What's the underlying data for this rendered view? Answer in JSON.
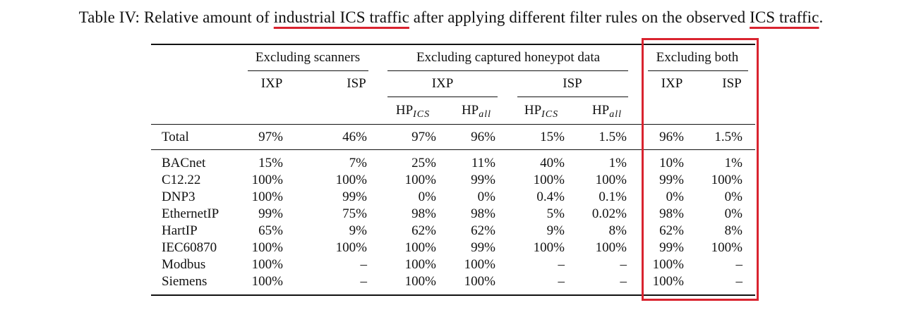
{
  "caption": {
    "prefix": "Table IV: Relative amount of ",
    "u1": "industrial ICS traffic",
    "middle": " after applying different filter rules on the observed ",
    "u2": "ICS traffic",
    "suffix": "."
  },
  "colors": {
    "highlight": "#d9232f",
    "text": "#111111"
  },
  "header": {
    "group1": "Excluding scanners",
    "group2": "Excluding captured honeypot data",
    "group3": "Excluding both",
    "ixp": "IXP",
    "isp": "ISP",
    "hp": "HP",
    "ics": "ICS",
    "all": "all"
  },
  "total": {
    "label": "Total",
    "values": [
      "97%",
      "46%",
      "97%",
      "96%",
      "15%",
      "1.5%",
      "96%",
      "1.5%"
    ]
  },
  "rows": [
    {
      "label": "BACnet",
      "values": [
        "15%",
        "7%",
        "25%",
        "11%",
        "40%",
        "1%",
        "10%",
        "1%"
      ]
    },
    {
      "label": "C12.22",
      "values": [
        "100%",
        "100%",
        "100%",
        "99%",
        "100%",
        "100%",
        "99%",
        "100%"
      ]
    },
    {
      "label": "DNP3",
      "values": [
        "100%",
        "99%",
        "0%",
        "0%",
        "0.4%",
        "0.1%",
        "0%",
        "0%"
      ]
    },
    {
      "label": "EthernetIP",
      "values": [
        "99%",
        "75%",
        "98%",
        "98%",
        "5%",
        "0.02%",
        "98%",
        "0%"
      ]
    },
    {
      "label": "HartIP",
      "values": [
        "65%",
        "9%",
        "62%",
        "62%",
        "9%",
        "8%",
        "62%",
        "8%"
      ]
    },
    {
      "label": "IEC60870",
      "values": [
        "100%",
        "100%",
        "100%",
        "99%",
        "100%",
        "100%",
        "99%",
        "100%"
      ]
    },
    {
      "label": "Modbus",
      "values": [
        "100%",
        "–",
        "100%",
        "100%",
        "–",
        "–",
        "100%",
        "–"
      ]
    },
    {
      "label": "Siemens",
      "values": [
        "100%",
        "–",
        "100%",
        "100%",
        "–",
        "–",
        "100%",
        "–"
      ]
    }
  ]
}
